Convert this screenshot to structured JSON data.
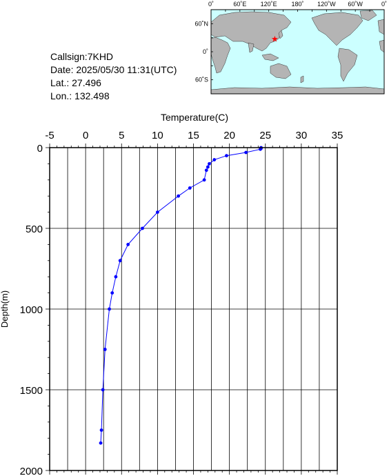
{
  "station": {
    "callsign": "Callsign:7KHD",
    "date": "Date:  2025/05/30 11:31(UTC)",
    "lat": "Lat.:   27.496",
    "lon": "Lon.:  132.498"
  },
  "map": {
    "lon_labels": [
      "0˚",
      "60˚E",
      "120˚E",
      "180˚",
      "120˚W",
      "60˚W",
      "0˚"
    ],
    "lat_labels": [
      "60˚N",
      "0˚",
      "60˚S"
    ],
    "marker": {
      "lat": 27.496,
      "lon": 132.498
    },
    "colors": {
      "ocean": "#ccffff",
      "land": "#b4b4b4",
      "marker": "#ff0000"
    }
  },
  "chart_data": {
    "type": "line",
    "xlabel": "Temperature(C)",
    "ylabel": "Depth(m)",
    "xlim": [
      -5,
      35
    ],
    "ylim": [
      2000,
      0
    ],
    "x_ticks": [
      "-5",
      "0",
      "5",
      "10",
      "15",
      "20",
      "25",
      "30",
      "35"
    ],
    "y_ticks": [
      "0",
      "500",
      "1000",
      "1500",
      "2000"
    ],
    "grid": true,
    "color": "#0000ff",
    "series": [
      {
        "x": [
          24.4,
          24.4,
          24.3,
          22.3,
          19.6,
          17.9,
          17.2,
          17.0,
          16.8,
          16.5,
          14.5,
          12.9,
          10.0,
          7.9,
          5.9,
          4.8,
          4.2,
          3.7,
          3.3,
          2.7,
          2.4,
          2.2,
          2.1
        ],
        "y": [
          0,
          5,
          10,
          30,
          50,
          75,
          100,
          120,
          140,
          200,
          250,
          300,
          400,
          500,
          600,
          700,
          800,
          900,
          1000,
          1250,
          1500,
          1750,
          1830
        ]
      }
    ]
  }
}
